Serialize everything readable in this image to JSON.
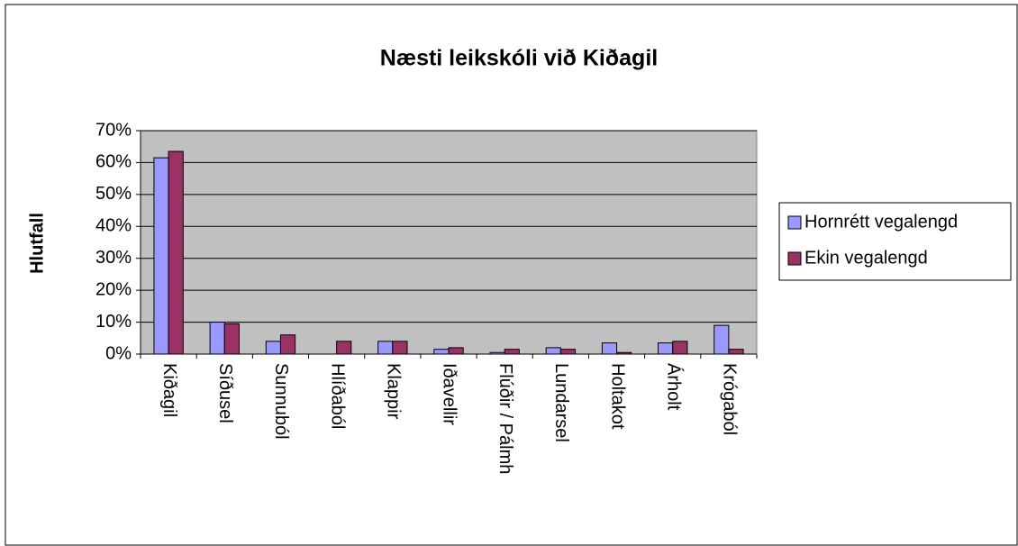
{
  "chart_data": {
    "type": "bar",
    "title": "Næsti leikskóli við Kiðagil",
    "y_label": "Hlutfall",
    "categories": [
      "Kiðagil",
      "Síðusel",
      "Sunnuból",
      "Hlíðaból",
      "Klappir",
      "Iðavellir",
      "Flúðir / Pálmh",
      "Lundarsel",
      "Holtakot",
      "Árholt",
      "Krógaból"
    ],
    "series": [
      {
        "name": "Hornrétt vegalengd",
        "color": "#9999ff",
        "values": [
          61.5,
          10,
          4,
          0,
          4,
          1.5,
          0.5,
          2,
          3.5,
          3.5,
          9
        ]
      },
      {
        "name": "Ekin vegalengd",
        "color": "#993366",
        "values": [
          63.5,
          9.5,
          6,
          4,
          4,
          2,
          1.5,
          1.5,
          0.5,
          4,
          1.5
        ]
      }
    ],
    "ylim": [
      0,
      70
    ],
    "yticks": [
      {
        "value": 0,
        "label": "0%"
      },
      {
        "value": 10,
        "label": "10%"
      },
      {
        "value": 20,
        "label": "20%"
      },
      {
        "value": 30,
        "label": "30%"
      },
      {
        "value": 40,
        "label": "40%"
      },
      {
        "value": 50,
        "label": "50%"
      },
      {
        "value": 60,
        "label": "60%"
      },
      {
        "value": 70,
        "label": "70%"
      }
    ],
    "grid": true,
    "legend": "right",
    "plot_background": "#c0c0c0"
  }
}
